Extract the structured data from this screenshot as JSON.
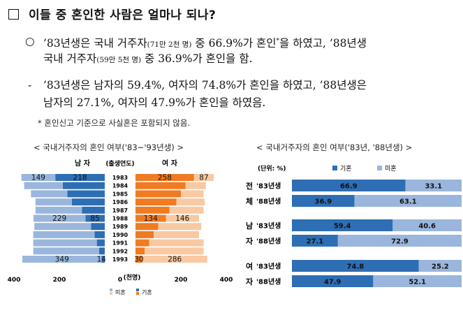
{
  "title": "이들 중 혼인한 사람은 얼마나 되나?",
  "bullets": [
    {
      "marker": "○",
      "line1_a": "’83년생은 국내 거주자",
      "line1_small1": "(71만 2천 명)",
      "line1_b": " 중 66.9%가 혼인",
      "line1_star": "*",
      "line1_c": "을 하였고, ’88년생",
      "line2_a": "국내 거주자",
      "line2_small": "(59만 5천 명)",
      "line2_b": " 중 36.9%가 혼인을 함."
    },
    {
      "marker": "-",
      "line1": "’83년생은 남자의 59.4%, 여자의 74.8%가 혼인을 하였고, ’88년생은",
      "line2": "남자의 27.1%, 여자의 47.9%가 혼인을 하였음."
    }
  ],
  "footnote": "* 혼인신고 기준으로 사실혼은 포함되지 않음.",
  "chart_data": [
    {
      "type": "bar",
      "orientation": "horizontal-population-pyramid",
      "caption": "< 국내거주자의 혼인 여부('83~'93년생) >",
      "left_header": "남 자",
      "center_header": "(출생연도)",
      "right_header": "여 자",
      "categories": [
        "1983",
        "1984",
        "1985",
        "1986",
        "1987",
        "1988",
        "1989",
        "1990",
        "1991",
        "1992",
        "1993"
      ],
      "unit_label": "(천명)",
      "x_ticks": [
        "400",
        "200",
        "0",
        "200",
        "400"
      ],
      "xlim": [
        0,
        400
      ],
      "series": [
        {
          "name": "남자 기혼",
          "color": "#2e6eb4",
          "values": [
            218,
            185,
            165,
            145,
            100,
            85,
            60,
            45,
            35,
            25,
            14
          ]
        },
        {
          "name": "남자 미혼",
          "color": "#9ab6dc",
          "values": [
            149,
            170,
            160,
            160,
            205,
            229,
            250,
            270,
            280,
            290,
            349
          ]
        },
        {
          "name": "여자 기혼",
          "color": "#ef7b22",
          "values": [
            258,
            220,
            200,
            180,
            150,
            134,
            100,
            80,
            60,
            40,
            30
          ]
        },
        {
          "name": "여자 미혼",
          "color": "#f8c9a2",
          "values": [
            87,
            90,
            100,
            125,
            150,
            146,
            190,
            200,
            240,
            260,
            286
          ]
        }
      ],
      "labels": [
        {
          "category": "1983",
          "series": "남자 미혼",
          "text": "149"
        },
        {
          "category": "1983",
          "series": "남자 기혼",
          "text": "218"
        },
        {
          "category": "1983",
          "series": "여자 기혼",
          "text": "258"
        },
        {
          "category": "1983",
          "series": "여자 미혼",
          "text": "87"
        },
        {
          "category": "1988",
          "series": "남자 미혼",
          "text": "229"
        },
        {
          "category": "1988",
          "series": "남자 기혼",
          "text": "85"
        },
        {
          "category": "1988",
          "series": "여자 기혼",
          "text": "134"
        },
        {
          "category": "1988",
          "series": "여자 미혼",
          "text": "146"
        },
        {
          "category": "1993",
          "series": "남자 미혼",
          "text": "349"
        },
        {
          "category": "1993",
          "series": "남자 기혼",
          "text": "14"
        },
        {
          "category": "1993",
          "series": "여자 기혼",
          "text": "30"
        },
        {
          "category": "1993",
          "series": "여자 미혼",
          "text": "286"
        }
      ],
      "legend": [
        {
          "label": "미혼",
          "male_color": "#9ab6dc",
          "female_color": "#f8c9a2"
        },
        {
          "label": "기혼",
          "male_color": "#2e6eb4",
          "female_color": "#ef7b22"
        }
      ]
    },
    {
      "type": "bar",
      "orientation": "horizontal-stacked-100",
      "caption": "< 국내거주자의 혼인 여부('83년, '88년생) >",
      "unit": "(단위: %)",
      "legend": [
        {
          "label": "기혼",
          "color": "#2e6eb4"
        },
        {
          "label": "미혼",
          "color": "#9ab6dc"
        }
      ],
      "groups": [
        {
          "name_top": "전",
          "name_bottom": "체",
          "rows": [
            {
              "label": "'83년생",
              "married": 66.9,
              "unmarried": 33.1
            },
            {
              "label": "'88년생",
              "married": 36.9,
              "unmarried": 63.1
            }
          ]
        },
        {
          "name_top": "남",
          "name_bottom": "자",
          "rows": [
            {
              "label": "'83년생",
              "married": 59.4,
              "unmarried": 40.6
            },
            {
              "label": "'88년생",
              "married": 27.1,
              "unmarried": 72.9
            }
          ]
        },
        {
          "name_top": "여",
          "name_bottom": "자",
          "rows": [
            {
              "label": "'83년생",
              "married": 74.8,
              "unmarried": 25.2
            },
            {
              "label": "'88년생",
              "married": 47.9,
              "unmarried": 52.1
            }
          ]
        }
      ]
    }
  ]
}
